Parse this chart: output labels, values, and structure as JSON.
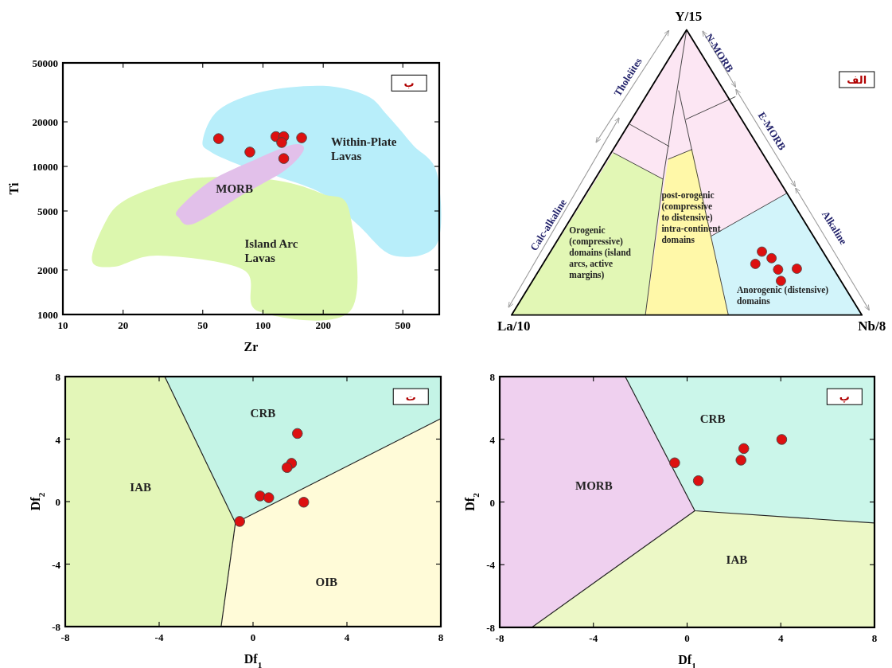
{
  "chart_data": [
    {
      "type": "scatter",
      "xlabel": "Zr",
      "ylabel": "Ti",
      "log": "xy",
      "xlim": [
        10,
        760
      ],
      "ylim": [
        1000,
        50000
      ],
      "xticks": [
        10,
        20,
        50,
        100,
        200,
        500
      ],
      "yticks": [
        1000,
        2000,
        5000,
        10000,
        20000,
        50000
      ],
      "x": [
        60,
        86,
        116,
        127,
        124,
        127,
        156
      ],
      "values": [
        15400,
        12500,
        15900,
        15900,
        14500,
        11300,
        15600
      ],
      "color": "#dd1010",
      "marker": "circle",
      "annotations": [
        "ب",
        "Within-Plate Lavas",
        "MORB",
        "Island Arc Lavas"
      ]
    },
    {
      "type": "other",
      "annotations": [
        "الف",
        "Y/15",
        "La/10",
        "Nb/8",
        "Tholeiites",
        "Calc-alkaline",
        "N-MORB",
        "E-MORB",
        "Alkaline",
        "Orogenic (compressive) domains (island arcs, active margins)",
        "post-orogenic (compressive to distensive) intra-continent domains",
        "Anorogenic (distensive) domains"
      ]
    },
    {
      "type": "scatter",
      "xlabel": "Df$_{1}$",
      "ylabel": "Df$_{2}$",
      "xlim": [
        -8,
        8
      ],
      "ylim": [
        -8,
        8
      ],
      "xticks": [
        -8,
        -4,
        0,
        4,
        8
      ],
      "yticks": [
        -8,
        -4,
        0,
        4,
        8
      ],
      "series": [
        {
          "type": "line",
          "color": "#222222",
          "marker": "none",
          "x": [
            -3.76,
            -0.75,
            8
          ],
          "values": [
            8,
            -1.36,
            5.31
          ]
        },
        {
          "type": "line",
          "color": "#222222",
          "marker": "none",
          "x": [
            -0.75,
            -1.36
          ],
          "values": [
            -1.36,
            -8
          ]
        },
        {
          "type": "scatter",
          "color": "#dd1010",
          "marker": "circle",
          "x": [
            1.89,
            1.64,
            1.45,
            0.3,
            0.67,
            2.16,
            -0.57
          ],
          "values": [
            4.36,
            2.45,
            2.18,
            0.36,
            0.25,
            -0.04,
            -1.27
          ]
        }
      ],
      "annotations": [
        "ت",
        "CRB",
        "IAB",
        "OIB"
      ]
    },
    {
      "type": "scatter",
      "xlabel": "Df$_{1}$",
      "ylabel": "Df$_{2}$",
      "xlim": [
        -8,
        8
      ],
      "ylim": [
        -8,
        8
      ],
      "xticks": [
        -8,
        -4,
        0,
        4,
        8
      ],
      "yticks": [
        -8,
        -4,
        0,
        4,
        8
      ],
      "series": [
        {
          "type": "line",
          "color": "#222222",
          "marker": "none",
          "x": [
            -2.64,
            0.33,
            8
          ],
          "values": [
            8,
            -0.56,
            -1.34
          ]
        },
        {
          "type": "line",
          "color": "#222222",
          "marker": "none",
          "x": [
            0.33,
            -6.63
          ],
          "values": [
            -0.56,
            -8
          ]
        },
        {
          "type": "scatter",
          "color": "#dd1010",
          "marker": "circle",
          "x": [
            -0.53,
            0.48,
            2.42,
            2.3,
            4.04
          ],
          "values": [
            2.5,
            1.36,
            3.41,
            2.67,
            3.99
          ]
        }
      ],
      "annotations": [
        "پ",
        "CRB",
        "MORB",
        "IAB"
      ]
    }
  ]
}
